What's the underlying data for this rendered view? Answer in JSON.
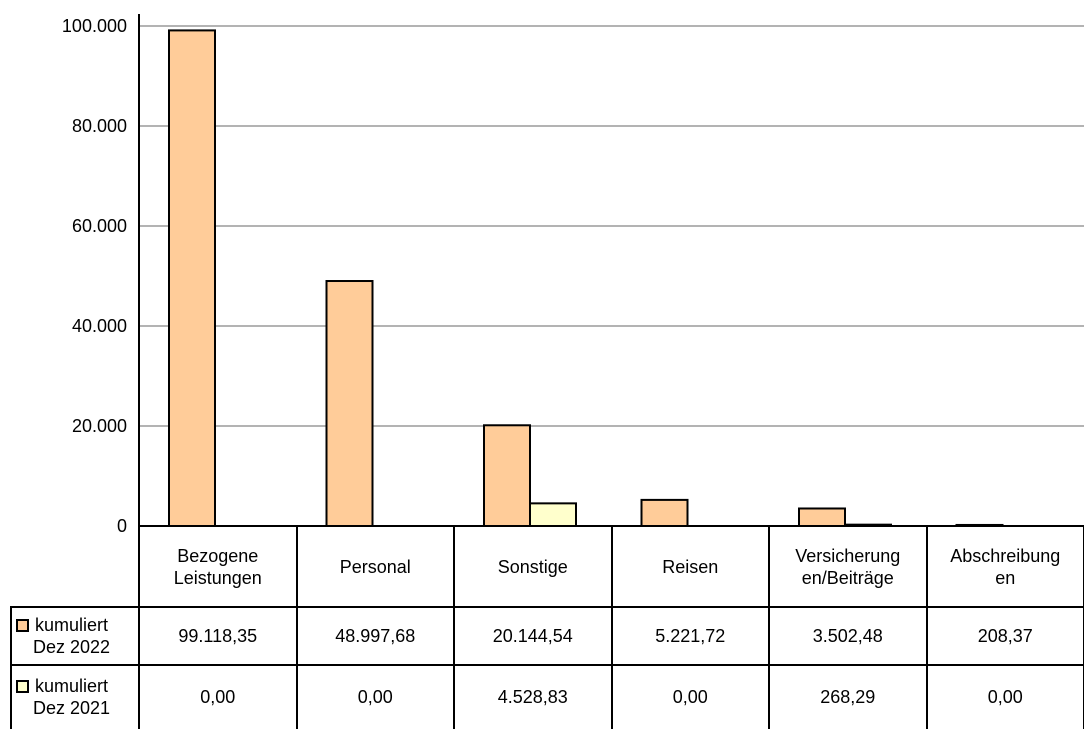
{
  "chart_data": {
    "type": "bar",
    "title": "",
    "xlabel": "",
    "ylabel": "",
    "ylim": [
      0,
      100000
    ],
    "yticks": [
      0,
      20000,
      40000,
      60000,
      80000,
      100000
    ],
    "ytick_labels": [
      "0",
      "20.000",
      "40.000",
      "60.000",
      "80.000",
      "100.000"
    ],
    "grid": true,
    "legend": "in data table",
    "categories": [
      "Bezogene Leistungen",
      "Personal",
      "Sonstige",
      "Reisen",
      "Versicherungen/Beiträge",
      "Abschreibungen"
    ],
    "category_labels": [
      [
        "Bezogene",
        "Leistungen"
      ],
      [
        "Personal"
      ],
      [
        "Sonstige"
      ],
      [
        "Reisen"
      ],
      [
        "Versicherung",
        "en/Beiträge"
      ],
      [
        "Abschreibung",
        "en"
      ]
    ],
    "series": [
      {
        "name": "kumuliert Dez 2022",
        "name_lines": [
          "kumuliert",
          "Dez 2022"
        ],
        "color": "#FFCC99",
        "values": [
          99118.35,
          48997.68,
          20144.54,
          5221.72,
          3502.48,
          208.37
        ],
        "labels": [
          "99.118,35",
          "48.997,68",
          "20.144,54",
          "5.221,72",
          "3.502,48",
          "208,37"
        ]
      },
      {
        "name": "kumuliert Dez 2021",
        "name_lines": [
          "kumuliert",
          "Dez 2021"
        ],
        "color": "#FFFFCC",
        "values": [
          0,
          0,
          4528.83,
          0,
          268.29,
          0
        ],
        "labels": [
          "0,00",
          "0,00",
          "4.528,83",
          "0,00",
          "268,29",
          "0,00"
        ]
      }
    ]
  }
}
